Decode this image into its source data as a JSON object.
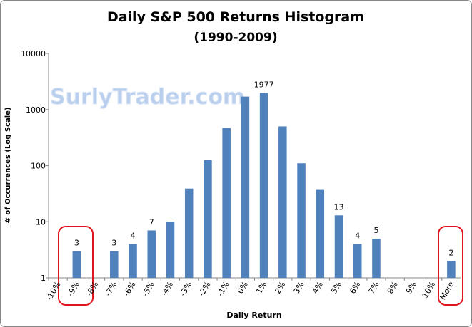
{
  "chart_data": {
    "type": "bar",
    "title": "Daily S&P 500 Returns Histogram",
    "subtitle": "(1990-2009)",
    "x_label": "Daily Return",
    "y_label": "# of Occurrences (Log Scale)",
    "watermark": "SurlyTrader.com",
    "categories": [
      "-10%",
      "-9%",
      "-8%",
      "-7%",
      "-6%",
      "-5%",
      "-4%",
      "-3%",
      "-2%",
      "-1%",
      "0%",
      "1%",
      "2%",
      "3%",
      "4%",
      "5%",
      "6%",
      "7%",
      "8%",
      "9%",
      "10%",
      "More"
    ],
    "values": [
      0,
      3,
      0,
      3,
      4,
      7,
      10,
      39,
      125,
      470,
      1700,
      1977,
      500,
      110,
      38,
      13,
      4,
      5,
      0,
      0,
      0,
      2
    ],
    "value_labels": [
      null,
      "3",
      null,
      "3",
      "4",
      "7",
      null,
      null,
      null,
      null,
      null,
      "1977",
      null,
      null,
      null,
      "13",
      "4",
      "5",
      null,
      null,
      null,
      "2"
    ],
    "color": "#4f81bd",
    "log_scale": true,
    "ylim": [
      1,
      10000
    ],
    "yticks": [
      1,
      10,
      100,
      1000,
      10000
    ]
  }
}
